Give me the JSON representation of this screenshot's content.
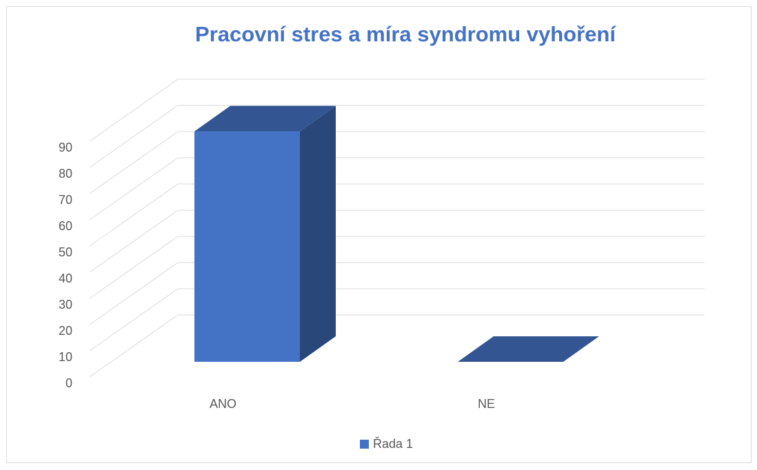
{
  "chart_data": {
    "type": "bar3d",
    "title": "Pracovní stres a míra syndromu vyhoření",
    "categories": [
      "ANO",
      "NE"
    ],
    "series": [
      {
        "name": "Řada 1",
        "color": "#4472c4",
        "values": [
          88,
          0
        ]
      }
    ],
    "ylim": [
      0,
      90
    ],
    "yticks": [
      0,
      10,
      20,
      30,
      40,
      50,
      60,
      70,
      80,
      90
    ],
    "grid": true,
    "legend": "bottom"
  }
}
